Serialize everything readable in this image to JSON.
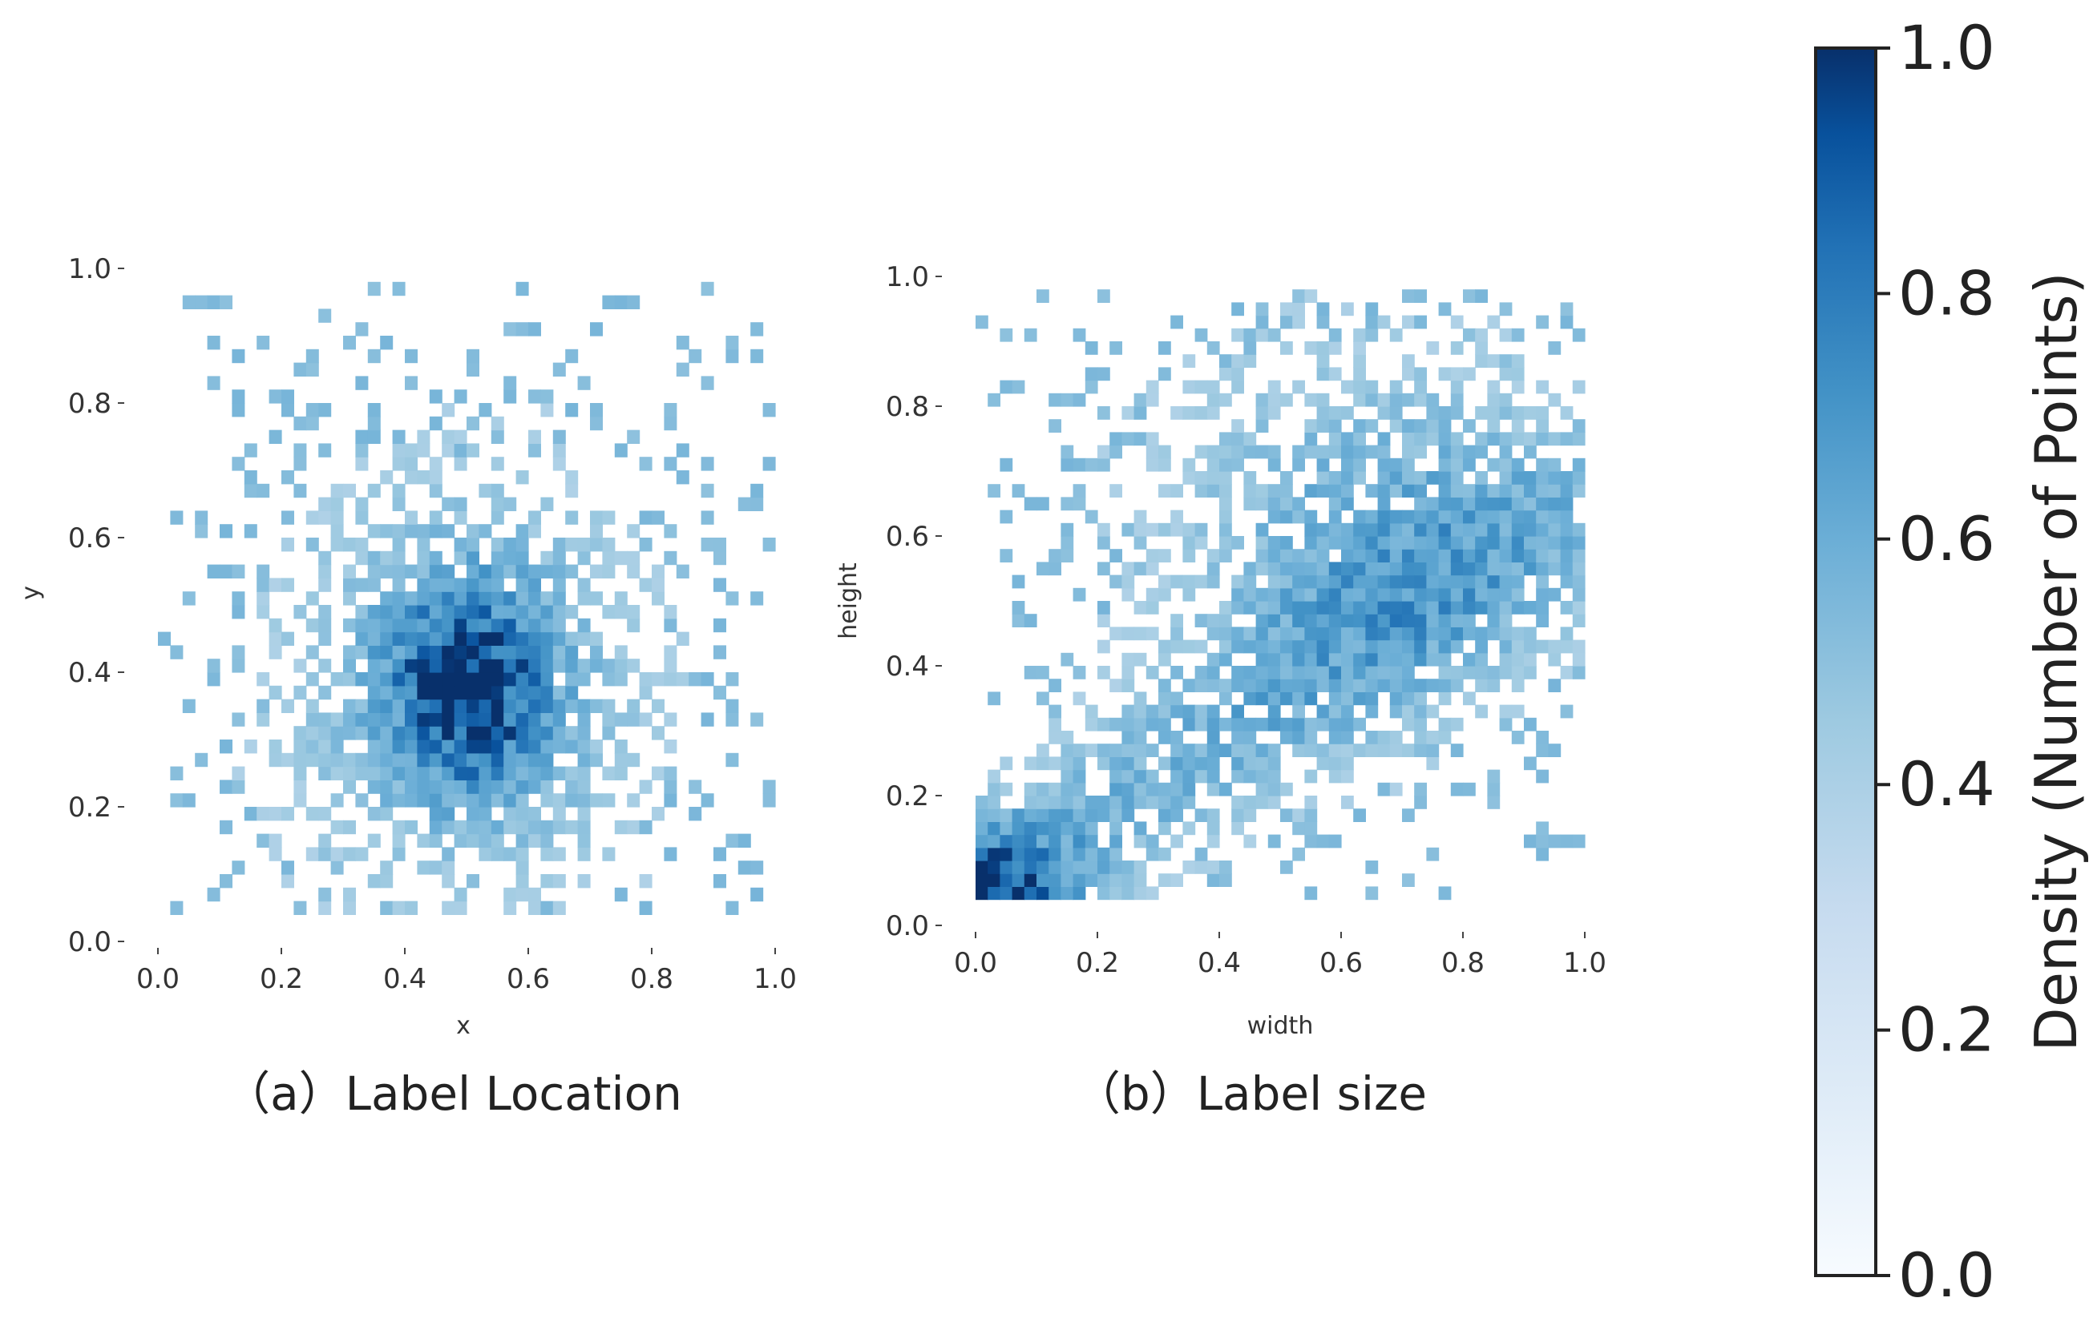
{
  "chart_data": [
    {
      "type": "heatmap",
      "caption": "（a）Label Location",
      "xlabel": "x",
      "ylabel": "y",
      "xlim": [
        0,
        1
      ],
      "ylim": [
        0,
        1
      ],
      "xticks": [
        "0.0",
        "0.2",
        "0.4",
        "0.6",
        "0.8",
        "1.0"
      ],
      "yticks": [
        "0.0",
        "0.2",
        "0.4",
        "0.6",
        "0.8",
        "1.0"
      ],
      "bins": 50,
      "density_peak": [
        0.5,
        0.38
      ],
      "grid": false
    },
    {
      "type": "heatmap",
      "caption": "（b）Label size",
      "xlabel": "width",
      "ylabel": "height",
      "xlim": [
        0,
        1
      ],
      "ylim": [
        0,
        1
      ],
      "xticks": [
        "0.0",
        "0.2",
        "0.4",
        "0.6",
        "0.8",
        "1.0"
      ],
      "yticks": [
        "0.0",
        "0.2",
        "0.4",
        "0.6",
        "0.8",
        "1.0"
      ],
      "bins": 50,
      "density_peak": [
        0.06,
        0.1
      ],
      "grid": false
    }
  ],
  "colorbar": {
    "label": "Density (Number of Points)",
    "ticks": [
      "0.0",
      "0.2",
      "0.4",
      "0.6",
      "0.8",
      "1.0"
    ],
    "range": [
      0,
      1
    ],
    "colormap": "Blues",
    "color_low": "#f7fbff",
    "color_mid": "#6baed6",
    "color_high": "#08306b"
  }
}
